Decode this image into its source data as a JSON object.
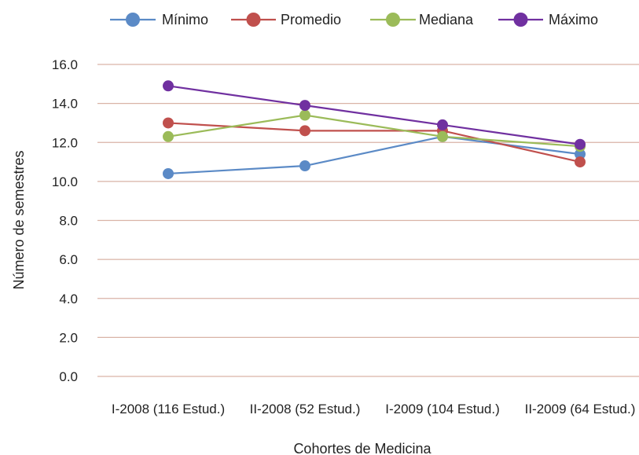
{
  "chart_data": {
    "type": "line",
    "title": "",
    "xlabel": "Cohortes de Medicina",
    "ylabel": "Número de semestres",
    "categories": [
      "I-2008 (116 Estud.)",
      "II-2008 (52 Estud.)",
      "I-2009 (104 Estud.)",
      "II-2009 (64 Estud.)"
    ],
    "ylim": [
      0,
      16
    ],
    "yticks": [
      "0.0",
      "2.0",
      "4.0",
      "6.0",
      "8.0",
      "10.0",
      "12.0",
      "14.0",
      "16.0"
    ],
    "grid": true,
    "legend_position": "top",
    "series": [
      {
        "name": "Mínimo",
        "color": "#5b8ac6",
        "values": [
          10.4,
          10.8,
          12.3,
          11.4
        ]
      },
      {
        "name": "Promedio",
        "color": "#c0504d",
        "values": [
          13.0,
          12.6,
          12.6,
          11.0
        ]
      },
      {
        "name": "Mediana",
        "color": "#9bbb59",
        "values": [
          12.3,
          13.4,
          12.3,
          11.8
        ]
      },
      {
        "name": "Máximo",
        "color": "#7030a0",
        "values": [
          14.9,
          13.9,
          12.9,
          11.9
        ]
      }
    ],
    "gridline_color": "#d9b3a6"
  }
}
